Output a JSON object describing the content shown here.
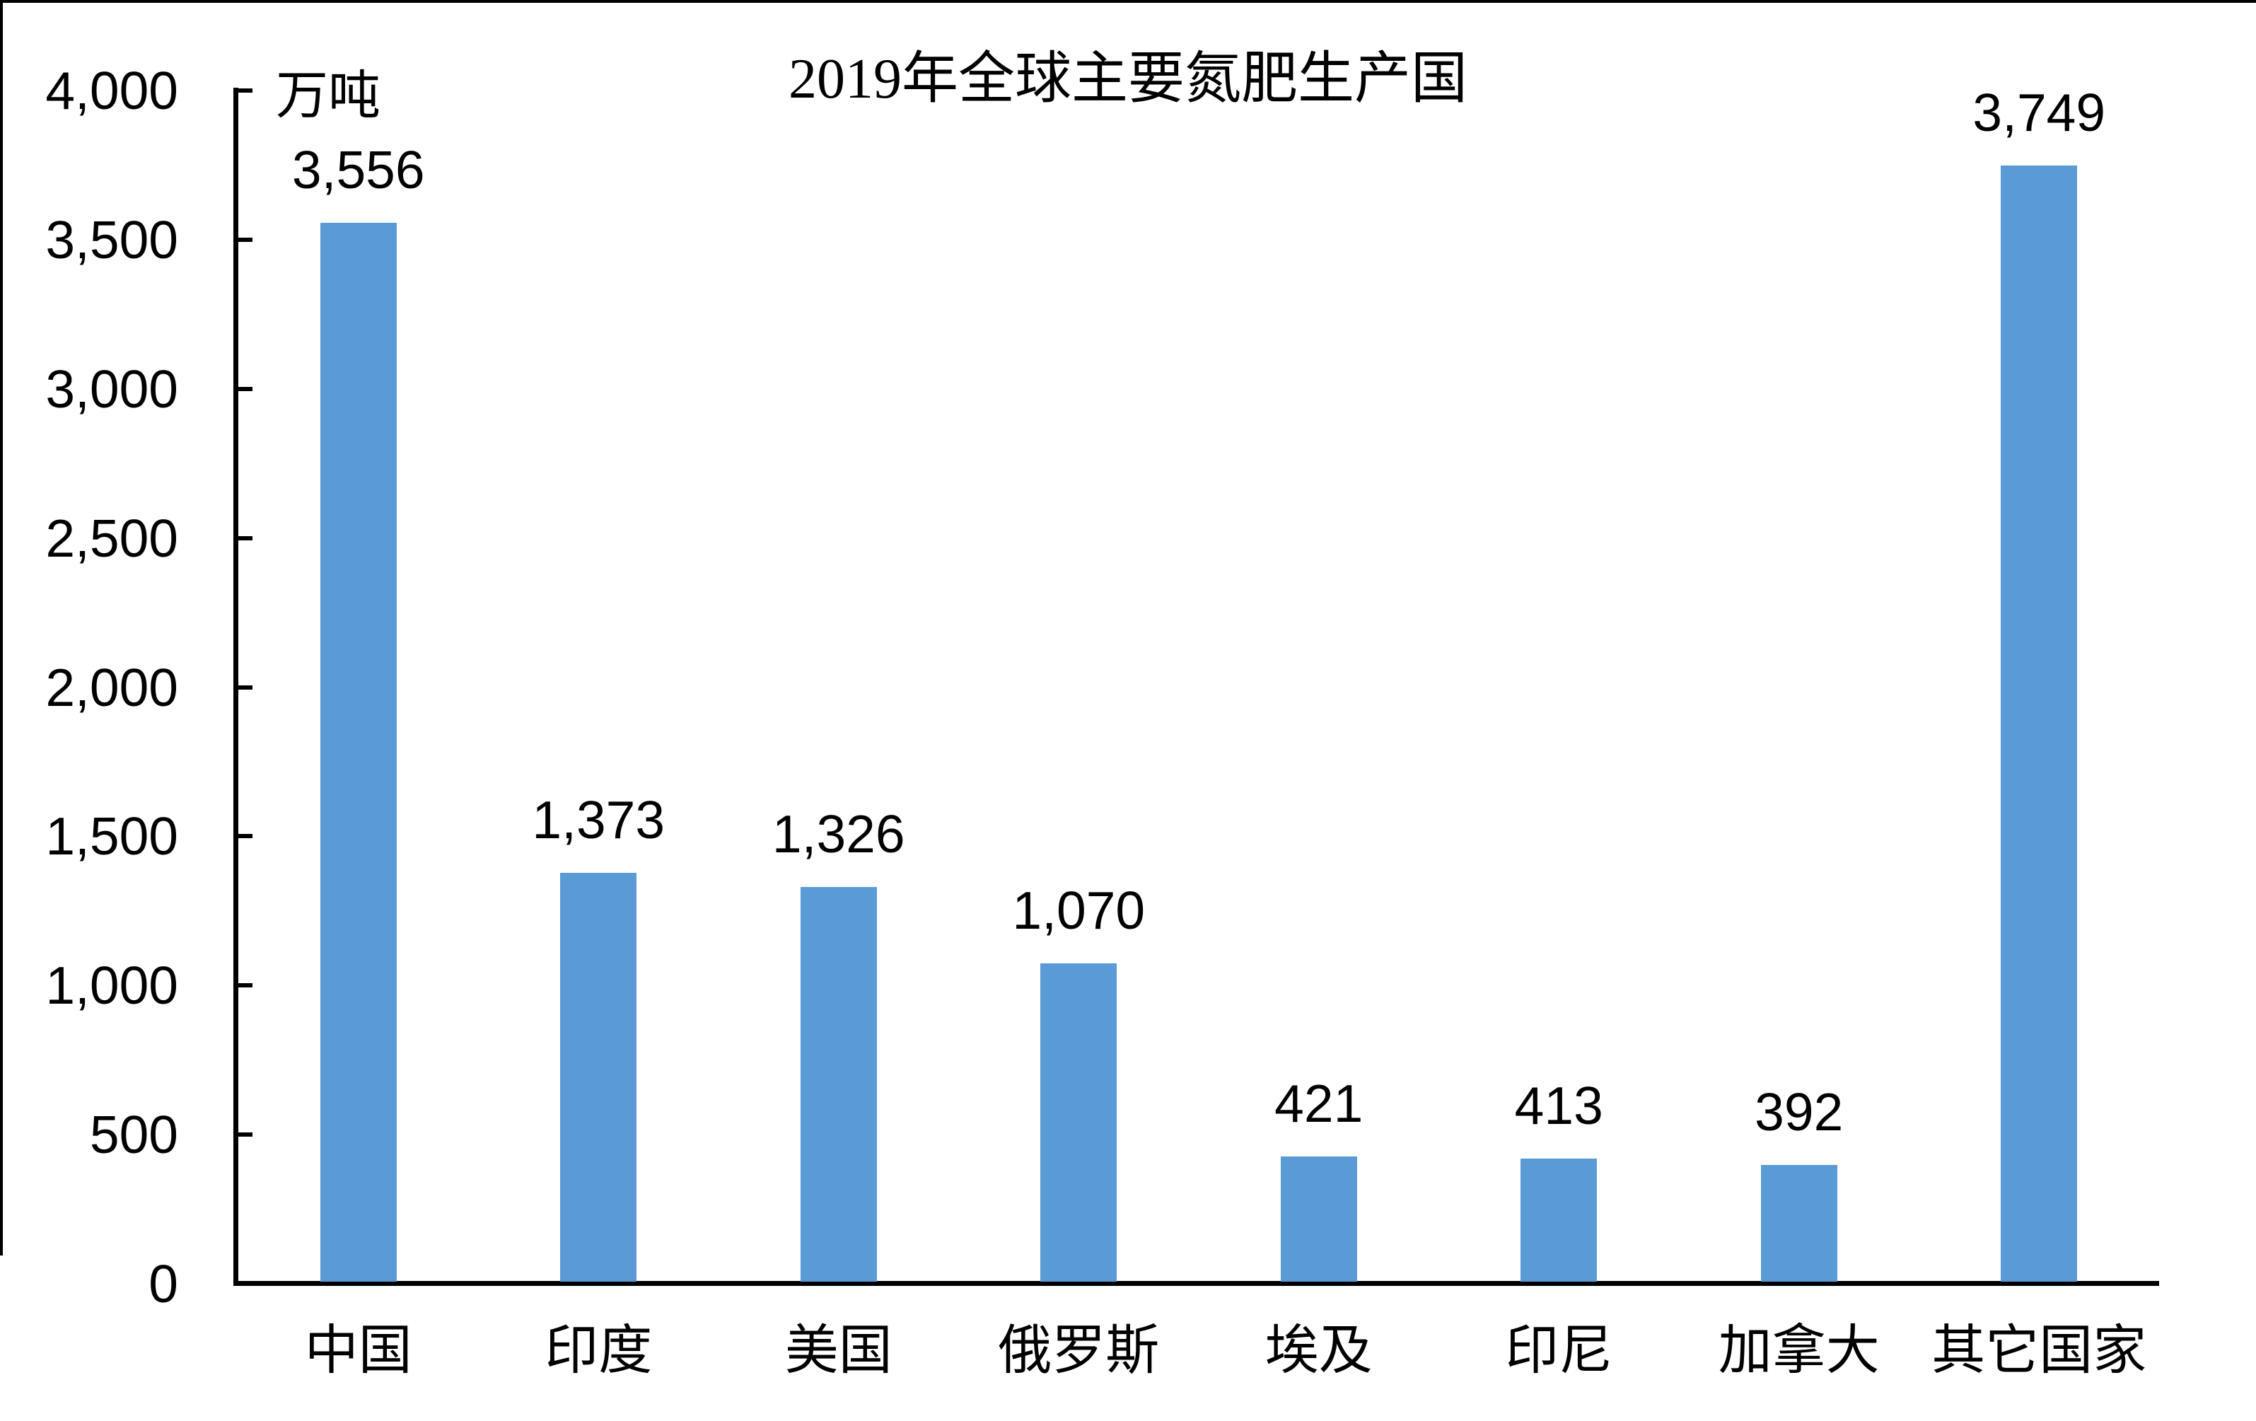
{
  "chart_data": {
    "type": "bar",
    "title": "2019年全球主要氮肥生产国",
    "y_axis_unit": "万吨",
    "categories": [
      "中国",
      "印度",
      "美国",
      "俄罗斯",
      "埃及",
      "印尼",
      "加拿大",
      "其它国家"
    ],
    "values": [
      3556,
      1373,
      1326,
      1070,
      421,
      413,
      392,
      3749
    ],
    "value_labels": [
      "3,556",
      "1,373",
      "1,326",
      "1,070",
      "421",
      "413",
      "392",
      "3,749"
    ],
    "y_tick_labels": [
      "4,000",
      "3,500",
      "3,000",
      "2,500",
      "2,000",
      "1,500",
      "1,000",
      "500",
      "0"
    ],
    "ylim": [
      0,
      4000
    ],
    "y_tick_step": 500,
    "bar_color": "#5B9BD5",
    "axis_color": "#000000",
    "text_color": "#000000",
    "grid": false,
    "legend": false
  }
}
